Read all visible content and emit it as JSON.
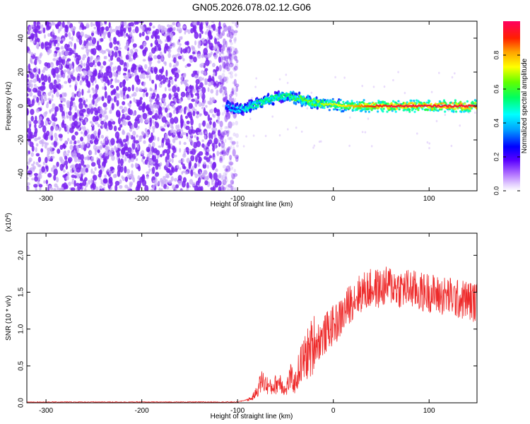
{
  "figure_title": "GN05.2026.078.02.12.G06",
  "colors": {
    "snr_line": "#ee2a2a",
    "noise_main": "#7a22f0",
    "noise_light": "#c7a8f7",
    "frame": "#000000"
  },
  "chart_data": [
    {
      "type": "heatmap",
      "title": "GN05.2026.078.02.12.G06",
      "xlabel": "Height of straight line (km)",
      "ylabel": "Frequency (Hz)",
      "xlim": [
        -320,
        150
      ],
      "ylim": [
        -50,
        50
      ],
      "x_ticks": [
        -300,
        -200,
        -100,
        0,
        100
      ],
      "x_tick_labels": [
        "-300",
        "-200",
        "-100",
        "0",
        "100"
      ],
      "y_ticks": [
        -40,
        -20,
        0,
        20,
        40
      ],
      "y_tick_labels": [
        "-40",
        "-20",
        "0",
        "20",
        "40"
      ],
      "noise_region_x": [
        -320,
        -108
      ],
      "signal_track": {
        "x": [
          -112,
          -100,
          -90,
          -80,
          -70,
          -60,
          -50,
          -40,
          -30,
          -20,
          -10,
          0,
          10,
          20,
          40,
          60,
          80,
          100,
          120,
          150
        ],
        "freq_hz": [
          0,
          -2,
          -1,
          1,
          3,
          5,
          6,
          5,
          3,
          2,
          1,
          1,
          0,
          0,
          0,
          0,
          0,
          0,
          0,
          0
        ],
        "amplitude": [
          0.35,
          0.45,
          0.5,
          0.55,
          0.55,
          0.55,
          0.55,
          0.6,
          0.65,
          0.65,
          0.7,
          0.7,
          0.75,
          0.8,
          0.9,
          0.95,
          0.95,
          0.95,
          0.95,
          0.95
        ]
      },
      "colorbar": {
        "label": "Normalized spectral amplitude",
        "range": [
          0,
          1
        ],
        "ticks": [
          0.0,
          0.2,
          0.4,
          0.6,
          0.8
        ],
        "tick_labels": [
          "0.0",
          "0.2",
          "0.4",
          "0.6",
          "0.8"
        ]
      }
    },
    {
      "type": "line",
      "xlabel": "Height of straight line (km)",
      "ylabel": "SNR (10 * v/v)",
      "scale_label": "(x10",
      "scale_exponent": "4",
      "scale_close": ")",
      "xlim": [
        -320,
        150
      ],
      "ylim": [
        0,
        2.3
      ],
      "x_ticks": [
        -300,
        -200,
        -100,
        0,
        100
      ],
      "x_tick_labels": [
        "-300",
        "-200",
        "-100",
        "0",
        "100"
      ],
      "y_ticks": [
        0.0,
        0.5,
        1.0,
        1.5,
        2.0
      ],
      "y_tick_labels": [
        "0.0",
        "0.5",
        "1.0",
        "1.5",
        "2.0"
      ],
      "series": [
        {
          "name": "SNR",
          "x": [
            -320,
            -300,
            -250,
            -200,
            -150,
            -100,
            -85,
            -80,
            -75,
            -70,
            -65,
            -60,
            -55,
            -50,
            -45,
            -40,
            -35,
            -30,
            -25,
            -20,
            -15,
            -10,
            -5,
            0,
            5,
            10,
            15,
            20,
            25,
            30,
            40,
            50,
            60,
            70,
            80,
            90,
            100,
            110,
            120,
            130,
            140,
            150
          ],
          "y": [
            0.01,
            0.01,
            0.01,
            0.01,
            0.01,
            0.01,
            0.06,
            0.15,
            0.3,
            0.25,
            0.2,
            0.25,
            0.3,
            0.15,
            0.35,
            0.25,
            0.5,
            0.6,
            0.7,
            0.8,
            0.85,
            0.9,
            1.0,
            1.05,
            1.1,
            1.2,
            1.3,
            1.4,
            1.45,
            1.5,
            1.55,
            1.55,
            1.6,
            1.55,
            1.55,
            1.5,
            1.5,
            1.45,
            1.45,
            1.4,
            1.4,
            1.35
          ]
        }
      ]
    }
  ]
}
